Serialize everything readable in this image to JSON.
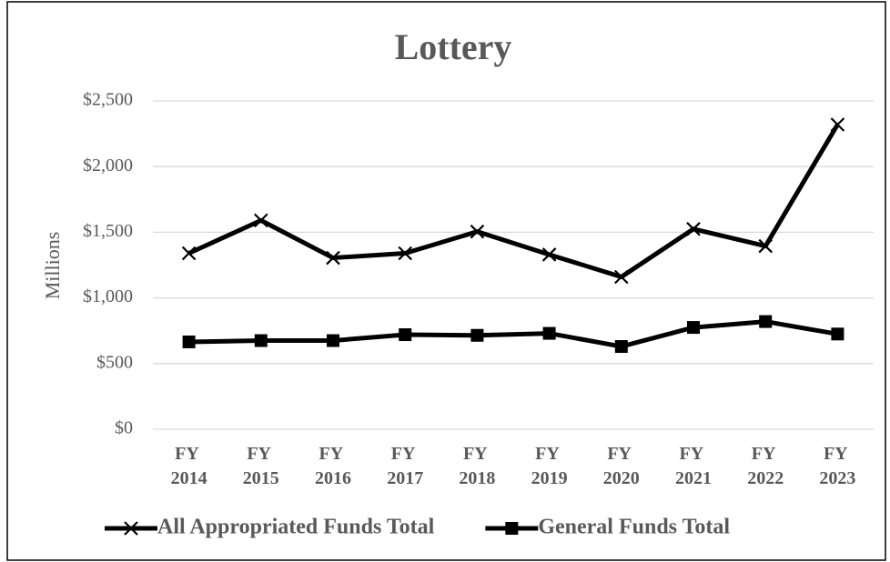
{
  "chart_data": {
    "type": "line",
    "title": "Lottery",
    "y_label": "Millions",
    "categories": [
      "FY 2014",
      "FY 2015",
      "FY 2016",
      "FY 2017",
      "FY 2018",
      "FY 2019",
      "FY 2020",
      "FY 2021",
      "FY 2022",
      "FY 2023"
    ],
    "series": [
      {
        "name": "All Appropriated Funds Total",
        "color": "#000000",
        "marker": "x",
        "values": [
          1340,
          1590,
          1305,
          1340,
          1505,
          1330,
          1160,
          1525,
          1395,
          2320
        ]
      },
      {
        "name": "General Funds Total",
        "color": "#000000",
        "marker": "square",
        "values": [
          665,
          675,
          675,
          720,
          715,
          730,
          630,
          775,
          820,
          725
        ]
      }
    ],
    "ylim": [
      0,
      2500
    ],
    "yticks": [
      {
        "value": 0,
        "label": "$0"
      },
      {
        "value": 500,
        "label": "$500"
      },
      {
        "value": 1000,
        "label": "$1,000"
      },
      {
        "value": 1500,
        "label": "$1,500"
      },
      {
        "value": 2000,
        "label": "$2,000"
      },
      {
        "value": 2500,
        "label": "$2,500"
      }
    ],
    "grid": true,
    "legend": "bottom"
  }
}
